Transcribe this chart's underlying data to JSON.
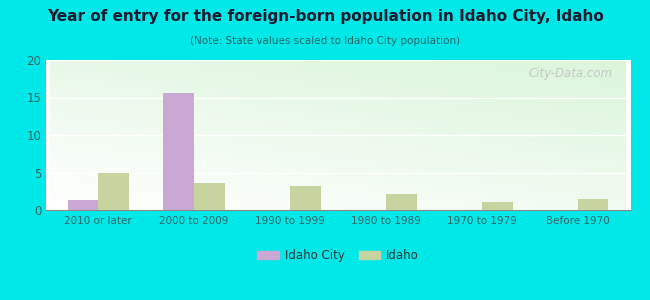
{
  "title": "Year of entry for the foreign-born population in Idaho City, Idaho",
  "subtitle": "(Note: State values scaled to Idaho City population)",
  "categories": [
    "2010 or later",
    "2000 to 2009",
    "1990 to 1999",
    "1980 to 1989",
    "1970 to 1979",
    "Before 1970"
  ],
  "idaho_city_values": [
    1.3,
    15.6,
    0,
    0,
    0,
    0
  ],
  "idaho_values": [
    5.0,
    3.6,
    3.2,
    2.1,
    1.1,
    1.5
  ],
  "idaho_city_color": "#c9a8d4",
  "idaho_color": "#c8d4a0",
  "background_outer": "#00e8e8",
  "ylim": [
    0,
    20
  ],
  "yticks": [
    0,
    5,
    10,
    15,
    20
  ],
  "legend_labels": [
    "Idaho City",
    "Idaho"
  ],
  "bar_width": 0.32,
  "watermark": "City-Data.com",
  "title_color": "#1a1a2e",
  "subtitle_color": "#2a6666",
  "tick_color": "#336666",
  "grid_color": "#ffffff"
}
